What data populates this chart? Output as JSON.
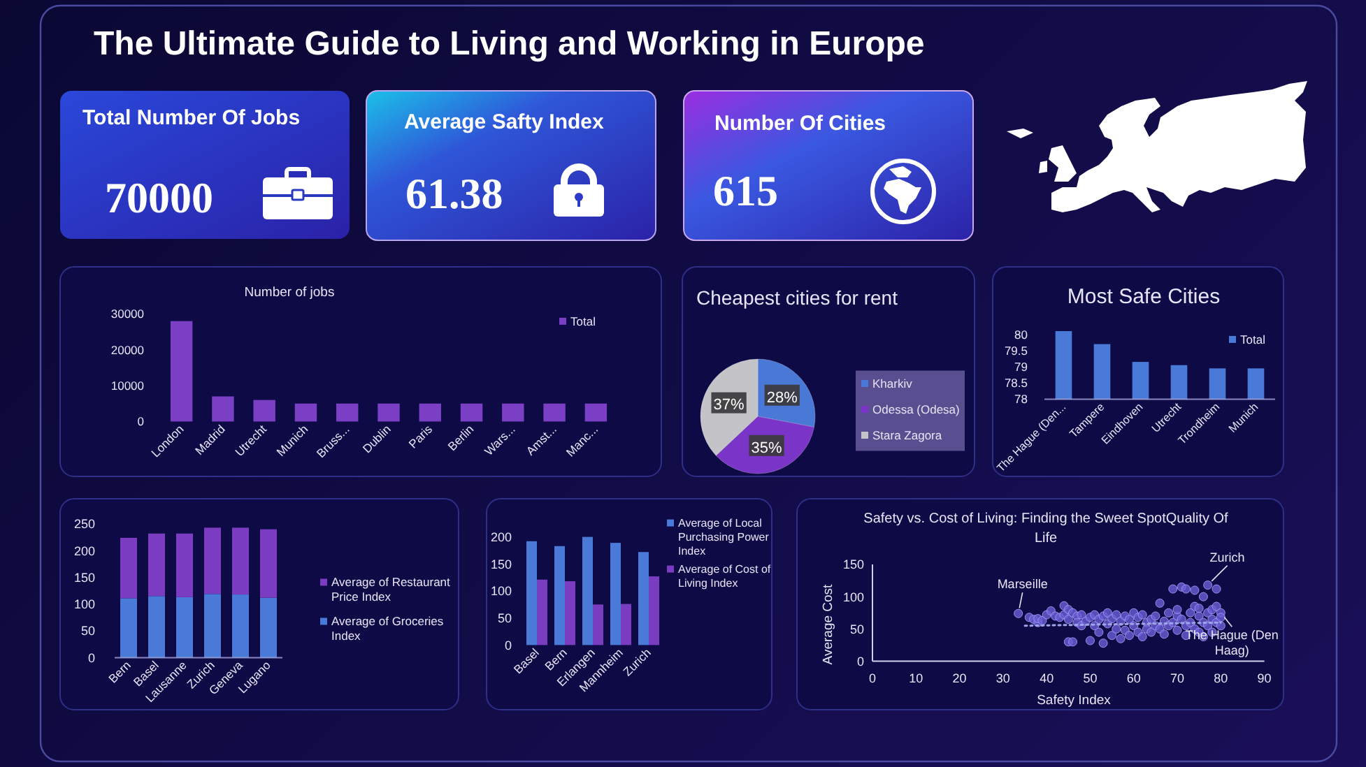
{
  "chart_data": [
    {
      "type": "other",
      "title": "The Ultimate Guide to Living and Working in Europe"
    },
    {
      "type": "other",
      "title": "Total Number Of Jobs",
      "annotations": [
        "70000"
      ]
    },
    {
      "type": "other",
      "title": "Average Safty Index",
      "annotations": [
        "61.38"
      ]
    },
    {
      "type": "other",
      "title": "Number Of Cities",
      "annotations": [
        "615"
      ]
    },
    {
      "type": "bar",
      "title": "Number of jobs",
      "categories": [
        "London",
        "Madrid",
        "Utrecht",
        "Munich",
        "Bruss...",
        "Dublin",
        "Paris",
        "Berlin",
        "Wars...",
        "Amst...",
        "Manc..."
      ],
      "series": [
        {
          "name": "Total",
          "color": "#7b3fc6",
          "values": [
            28000,
            7000,
            6000,
            5000,
            5000,
            5000,
            5000,
            5000,
            5000,
            5000,
            5000
          ]
        }
      ],
      "ylim": [
        0,
        30000
      ],
      "yticks": [
        0,
        10000,
        20000,
        30000
      ],
      "legend": "top right"
    },
    {
      "type": "pie",
      "title": "Cheapest cities for rent",
      "categories": [
        "Kharkiv",
        "Odessa (Odesa)",
        "Stara Zagora"
      ],
      "values": [
        28,
        35,
        37
      ],
      "colors": [
        "#4a78d6",
        "#7a35c8",
        "#c4c4c8"
      ],
      "value_labels": [
        "28%",
        "35%",
        "37%"
      ],
      "legend": "right"
    },
    {
      "type": "bar",
      "title": "Most Safe Cities",
      "categories": [
        "The Hague (Den...",
        "Tampere",
        "Eindhoven",
        "Utrecht",
        "Trondheim",
        "Munich"
      ],
      "series": [
        {
          "name": "Total",
          "color": "#4a7ad8",
          "values": [
            80.1,
            79.7,
            79.15,
            79.05,
            78.95,
            78.95
          ]
        }
      ],
      "ylim": [
        78,
        80.2
      ],
      "yticks": [
        78,
        78.5,
        79,
        79.5,
        80
      ],
      "legend": "top right"
    },
    {
      "type": "bar",
      "stacked": true,
      "categories": [
        "Bern",
        "Basel",
        "Lausanne",
        "Zurich",
        "Geneva",
        "Lugano"
      ],
      "series": [
        {
          "name": "Average of Groceries Index",
          "color": "#4a7ad8",
          "values": [
            111,
            115,
            113,
            119,
            118,
            112
          ]
        },
        {
          "name": "Average of Restaurant Price Index",
          "color": "#7a3cc0",
          "values": [
            113,
            117,
            119,
            124,
            125,
            128
          ]
        }
      ],
      "ylim": [
        0,
        250
      ],
      "yticks": [
        0,
        50,
        100,
        150,
        200,
        250
      ],
      "legend": "right"
    },
    {
      "type": "bar",
      "categories": [
        "Basel",
        "Bern",
        "Erlangen",
        "Mannheim",
        "Zurich"
      ],
      "series": [
        {
          "name": "Average of Local Purchasing Power Index",
          "color": "#4a7ad8",
          "values": [
            192,
            183,
            200,
            189,
            172
          ]
        },
        {
          "name": "Average of Cost of Living Index",
          "color": "#7a3cc0",
          "values": [
            121,
            118,
            75,
            76,
            127
          ]
        }
      ],
      "ylim": [
        0,
        200
      ],
      "yticks": [
        0,
        50,
        100,
        150,
        200
      ],
      "legend": "top right"
    },
    {
      "type": "scatter",
      "title": "Safety vs. Cost of Living: Finding the Sweet SpotQuality Of Life",
      "xlabel": "Safety Index",
      "ylabel": "Average Cost",
      "xlim": [
        0,
        90
      ],
      "xticks": [
        0,
        10,
        20,
        30,
        40,
        50,
        60,
        70,
        80,
        90
      ],
      "ylim": [
        0,
        150
      ],
      "yticks": [
        0,
        50,
        100,
        150
      ],
      "series": [
        {
          "type": "scatter",
          "marker": "circle",
          "color": "#6a5ed6",
          "x": [
            33.5,
            36,
            37,
            38,
            38,
            39,
            40,
            41,
            42,
            43,
            44,
            44,
            45,
            45,
            45,
            46,
            46,
            47,
            47,
            48,
            48,
            49,
            50,
            50,
            51,
            51,
            52,
            52,
            53,
            53,
            54,
            54,
            55,
            55,
            56,
            56,
            57,
            57,
            58,
            58,
            59,
            59,
            60,
            60,
            61,
            61,
            62,
            62,
            63,
            63,
            64,
            64,
            65,
            65,
            66,
            66,
            67,
            67,
            68,
            68,
            69,
            69,
            70,
            70,
            70,
            71,
            71,
            72,
            72,
            72,
            73,
            73,
            74,
            74,
            74,
            75,
            75,
            75,
            76,
            76,
            76,
            77,
            77,
            77,
            78,
            78,
            78,
            79,
            79,
            79,
            80,
            80,
            80
          ],
          "values": [
            74,
            68,
            65,
            60,
            66,
            63,
            72,
            78,
            70,
            68,
            86,
            72,
            65,
            30,
            80,
            30,
            75,
            70,
            60,
            55,
            72,
            62,
            68,
            32,
            72,
            55,
            65,
            45,
            28,
            70,
            75,
            58,
            40,
            66,
            72,
            50,
            62,
            35,
            70,
            48,
            65,
            40,
            75,
            55,
            68,
            45,
            72,
            38,
            60,
            50,
            65,
            45,
            70,
            55,
            90,
            50,
            62,
            42,
            75,
            55,
            112,
            60,
            70,
            48,
            80,
            115,
            65,
            112,
            55,
            40,
            75,
            60,
            110,
            85,
            50,
            70,
            45,
            82,
            100,
            60,
            38,
            118,
            75,
            55,
            80,
            45,
            65,
            112,
            85,
            60,
            75,
            68,
            55
          ]
        },
        {
          "type": "line",
          "color": "#a0a4e8",
          "line_style": "dotted",
          "x": [
            35,
            80
          ],
          "values": [
            55,
            60
          ]
        }
      ],
      "annotations": [
        {
          "text": "Marseille",
          "x": 33.5,
          "y": 74
        },
        {
          "text": "Zurich",
          "x": 77,
          "y": 118
        },
        {
          "text": "The Hague (Den Haag)",
          "x": 80,
          "y": 75
        }
      ]
    }
  ]
}
